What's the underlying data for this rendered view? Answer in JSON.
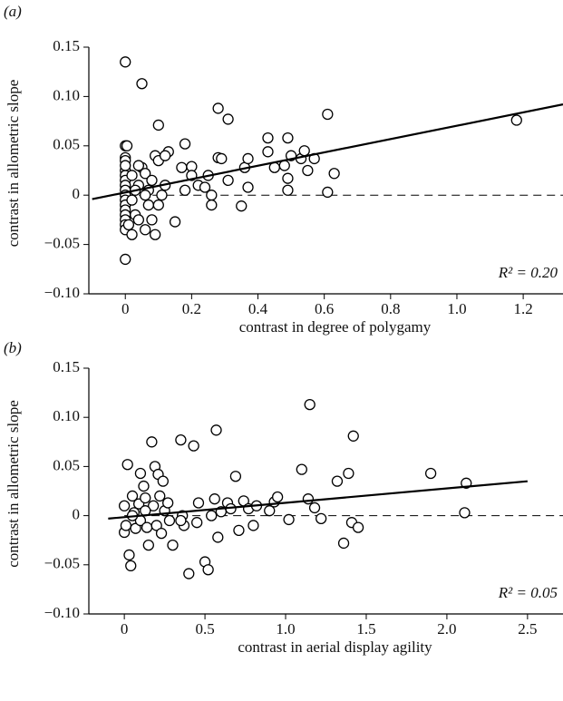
{
  "chart_data": [
    {
      "type": "scatter",
      "panel_label": "(a)",
      "ylabel": "contrast in allometric slope",
      "xlabel": "contrast in degree of polygamy",
      "annotation": "R² = 0.20",
      "xlim": [
        -0.11,
        1.32
      ],
      "ylim": [
        -0.1,
        0.15
      ],
      "xticks": [
        0,
        0.2,
        0.4,
        0.6,
        0.8,
        {
          "value": 1,
          "label": "1.0"
        },
        1.2
      ],
      "yticks": [
        {
          "value": -0.1,
          "label": "−0.10"
        },
        {
          "value": -0.05,
          "label": "−0.05"
        },
        0,
        0.05,
        {
          "value": 0.1,
          "label": "0.10"
        },
        0.15
      ],
      "reference_y": 0,
      "fit_line": {
        "x": [
          -0.1,
          1.32
        ],
        "y": [
          -0.004,
          0.092
        ]
      },
      "x": [
        0,
        0,
        0,
        0,
        0,
        0,
        0,
        0,
        0,
        0,
        0,
        0,
        0,
        0,
        0,
        0,
        0,
        0,
        0,
        0.05,
        0.005,
        0.02,
        0.03,
        0.04,
        0.05,
        0.06,
        0.06,
        0.07,
        0.07,
        0.08,
        0.09,
        0.09,
        0.1,
        0.1,
        0.11,
        0.12,
        0.13,
        0.15,
        0.17,
        0.18,
        0.18,
        0.2,
        0.2,
        0.22,
        0.24,
        0.25,
        0.26,
        0.26,
        0.28,
        0.28,
        0.29,
        0.31,
        0.31,
        0.35,
        0.36,
        0.37,
        0.37,
        0.43,
        0.43,
        0.45,
        0.48,
        0.49,
        0.49,
        0.49,
        0.5,
        0.53,
        0.54,
        0.55,
        0.57,
        0.61,
        0.61,
        0.63,
        1.18,
        0.02,
        0.04,
        0.08,
        0.1,
        0.03,
        0.06,
        0.02,
        0.01,
        0.04,
        0.12
      ],
      "values": [
        0.135,
        0.038,
        0.035,
        0.025,
        0.02,
        0.015,
        0.01,
        0.005,
        0,
        -0.005,
        -0.01,
        -0.015,
        -0.02,
        -0.025,
        -0.03,
        -0.035,
        -0.065,
        0.05,
        0.03,
        0.113,
        0.05,
        0.02,
        -0.02,
        0.01,
        0.028,
        0.022,
        -0.035,
        0.005,
        -0.01,
        0.015,
        -0.04,
        0.04,
        0.071,
        0.035,
        0,
        0.01,
        0.044,
        -0.027,
        0.028,
        0.052,
        0.005,
        0.029,
        0.02,
        0.01,
        0.008,
        0.02,
        0,
        -0.01,
        0.088,
        0.038,
        0.037,
        0.077,
        0.015,
        -0.011,
        0.028,
        0.037,
        0.008,
        0.058,
        0.044,
        0.028,
        0.03,
        0.058,
        0.017,
        0.005,
        0.04,
        0.037,
        0.045,
        0.025,
        0.037,
        0.082,
        0.003,
        0.022,
        0.076,
        -0.04,
        -0.025,
        -0.025,
        -0.01,
        0.005,
        0,
        -0.005,
        -0.03,
        0.03,
        0.04
      ]
    },
    {
      "type": "scatter",
      "panel_label": "(b)",
      "ylabel": "contrast in allometric slope",
      "xlabel": "contrast in aerial display agility",
      "annotation": "R² = 0.05",
      "xlim": [
        -0.22,
        2.72
      ],
      "ylim": [
        -0.1,
        0.15
      ],
      "xticks": [
        0,
        0.5,
        {
          "value": 1,
          "label": "1.0"
        },
        1.5,
        {
          "value": 2,
          "label": "2.0"
        },
        2.5
      ],
      "yticks": [
        {
          "value": -0.1,
          "label": "−0.10"
        },
        {
          "value": -0.05,
          "label": "−0.05"
        },
        0,
        0.05,
        {
          "value": 0.1,
          "label": "0.10"
        },
        0.15
      ],
      "reference_y": 0,
      "fit_line": {
        "x": [
          -0.1,
          2.5
        ],
        "y": [
          -0.003,
          0.035
        ]
      },
      "x": [
        0,
        0,
        0.01,
        0.02,
        0.03,
        0.04,
        0.05,
        0.06,
        0.07,
        0.09,
        0.1,
        0.1,
        0.12,
        0.13,
        0.14,
        0.15,
        0.17,
        0.18,
        0.19,
        0.2,
        0.21,
        0.22,
        0.23,
        0.24,
        0.25,
        0.27,
        0.28,
        0.3,
        0.35,
        0.36,
        0.37,
        0.4,
        0.43,
        0.45,
        0.46,
        0.5,
        0.52,
        0.54,
        0.56,
        0.57,
        0.58,
        0.6,
        0.64,
        0.66,
        0.69,
        0.71,
        0.74,
        0.77,
        0.8,
        0.82,
        0.9,
        0.93,
        0.95,
        1.02,
        1.1,
        1.14,
        1.15,
        1.18,
        1.22,
        1.32,
        1.36,
        1.39,
        1.41,
        1.42,
        1.45,
        1.9,
        2.12,
        2.11,
        0.13,
        0.35,
        0.05
      ],
      "values": [
        0.01,
        -0.017,
        -0.01,
        0.052,
        -0.04,
        -0.051,
        0.02,
        0.003,
        -0.013,
        0.012,
        0.043,
        -0.005,
        0.03,
        0.018,
        -0.012,
        -0.03,
        0.075,
        0.01,
        0.05,
        -0.01,
        0.042,
        0.02,
        -0.018,
        0.035,
        0.005,
        0.013,
        -0.005,
        -0.03,
        0.077,
        0,
        -0.01,
        -0.059,
        0.071,
        -0.007,
        0.013,
        -0.047,
        -0.055,
        0,
        0.017,
        0.087,
        -0.022,
        0.004,
        0.013,
        0.007,
        0.04,
        -0.015,
        0.015,
        0.007,
        -0.01,
        0.01,
        0.005,
        0.014,
        0.019,
        -0.004,
        0.047,
        0.017,
        0.113,
        0.008,
        -0.003,
        0.035,
        -0.028,
        0.043,
        -0.007,
        0.081,
        -0.012,
        0.043,
        0.033,
        0.003,
        0.005,
        -0.005,
        0
      ]
    }
  ]
}
